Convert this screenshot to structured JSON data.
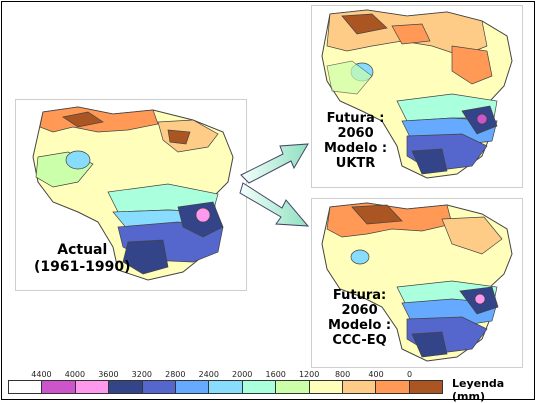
{
  "panels": {
    "actual": {
      "line1": "Actual",
      "line2": "(1961-1990)"
    },
    "uktr": {
      "line1": "Futura :",
      "line2": "2060",
      "line3": "Modelo :",
      "line4": "UKTR"
    },
    "ccceq": {
      "line1": "Futura:",
      "line2": "2060",
      "line3": "Modelo :",
      "line4": "CCC-EQ"
    }
  },
  "legend": {
    "title": "Leyenda (mm)",
    "ticks": [
      "4400",
      "4000",
      "3600",
      "3200",
      "2800",
      "2400",
      "2000",
      "1600",
      "1200",
      "800",
      "400",
      "0"
    ],
    "colors": [
      "#ffffff",
      "#cc55cc",
      "#ff99ee",
      "#334488",
      "#5566cc",
      "#66aaff",
      "#88ddff",
      "#aaffdd",
      "#ccffaa",
      "#ffffbb",
      "#ffcc88",
      "#ff9955",
      "#aa5522"
    ]
  },
  "arrow_icons": [
    "arrow-to-uktr-icon",
    "arrow-to-ccceq-icon"
  ]
}
